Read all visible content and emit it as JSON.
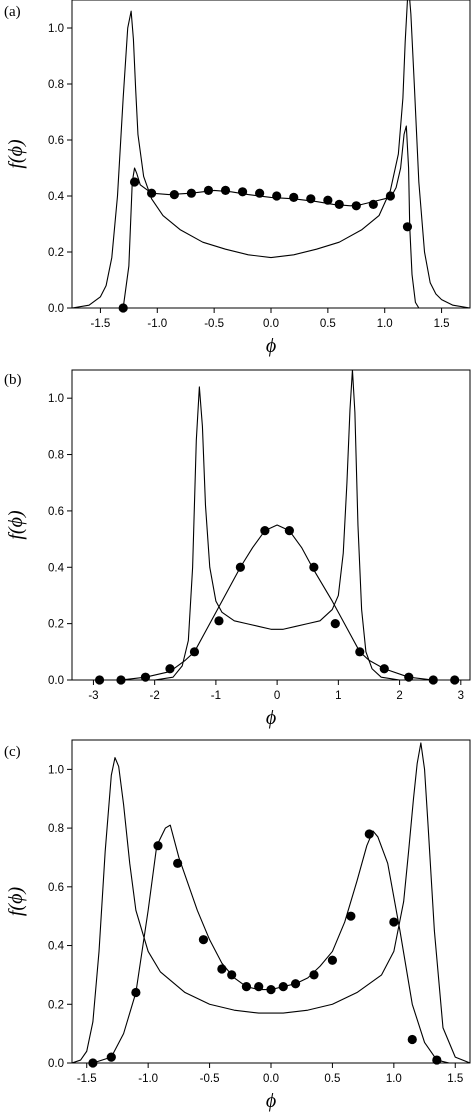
{
  "figure": {
    "panel_labels": [
      "(a)",
      "(b)",
      "(c)"
    ]
  },
  "chart_data": [
    {
      "type": "line",
      "panel": "(a)",
      "xlabel": "ϕ",
      "ylabel": "f(ϕ)",
      "xlim": [
        -1.75,
        1.75
      ],
      "ylim": [
        0,
        1.1
      ],
      "xticks": [
        -1.5,
        -1.0,
        -0.5,
        0.0,
        0.5,
        1.0,
        1.5
      ],
      "xtick_labels": [
        "-1.5",
        "-1.0",
        "-0.5",
        "0.0",
        "0.5",
        "1.0",
        "1.5"
      ],
      "yticks": [
        0.0,
        0.2,
        0.4,
        0.6,
        0.8,
        1.0
      ],
      "ytick_labels": [
        "0.0",
        "0.2",
        "0.4",
        "0.6",
        "0.8",
        "1.0"
      ],
      "grid": false,
      "series": [
        {
          "style": "line",
          "x": [
            -1.75,
            -1.6,
            -1.5,
            -1.45,
            -1.4,
            -1.35,
            -1.3,
            -1.26,
            -1.23,
            -1.21,
            -1.19,
            -1.17,
            -1.12,
            -1.05,
            -0.95,
            -0.8,
            -0.6,
            -0.4,
            -0.2,
            0.0,
            0.2,
            0.4,
            0.6,
            0.8,
            0.95,
            1.05,
            1.12,
            1.16,
            1.18,
            1.2,
            1.21,
            1.23,
            1.26,
            1.3,
            1.35,
            1.4,
            1.45,
            1.5,
            1.6,
            1.75
          ],
          "y": [
            0.0,
            0.01,
            0.04,
            0.08,
            0.18,
            0.4,
            0.75,
            1.0,
            1.06,
            0.96,
            0.78,
            0.62,
            0.47,
            0.39,
            0.33,
            0.28,
            0.235,
            0.21,
            0.19,
            0.18,
            0.19,
            0.21,
            0.235,
            0.28,
            0.33,
            0.42,
            0.55,
            0.75,
            0.95,
            1.1,
            1.15,
            1.05,
            0.8,
            0.45,
            0.2,
            0.09,
            0.05,
            0.03,
            0.01,
            0.0
          ]
        },
        {
          "style": "line-markers",
          "x": [
            -1.75,
            -1.35,
            -1.3,
            -1.25,
            -1.22,
            -1.2,
            -1.18,
            -1.15,
            -1.05,
            -0.9,
            -0.7,
            -0.5,
            -0.35,
            -0.2,
            0.0,
            0.2,
            0.4,
            0.55,
            0.7,
            0.8,
            0.9,
            1.0,
            1.06,
            1.1,
            1.14,
            1.17,
            1.19,
            1.21,
            1.22,
            1.24,
            1.27,
            1.3,
            1.75
          ],
          "y": [
            0.0,
            0.0,
            0.0,
            0.15,
            0.45,
            0.5,
            0.48,
            0.44,
            0.41,
            0.405,
            0.41,
            0.42,
            0.415,
            0.405,
            0.395,
            0.39,
            0.38,
            0.37,
            0.365,
            0.37,
            0.38,
            0.39,
            0.4,
            0.43,
            0.5,
            0.62,
            0.65,
            0.5,
            0.29,
            0.12,
            0.02,
            0.0,
            0.0
          ],
          "markers": {
            "x": [
              -1.3,
              -1.2,
              -1.05,
              -0.85,
              -0.7,
              -0.55,
              -0.4,
              -0.25,
              -0.1,
              0.05,
              0.2,
              0.35,
              0.5,
              0.6,
              0.75,
              0.9,
              1.05,
              1.2
            ],
            "y": [
              0.0,
              0.45,
              0.41,
              0.405,
              0.41,
              0.42,
              0.42,
              0.415,
              0.41,
              0.4,
              0.395,
              0.39,
              0.385,
              0.37,
              0.365,
              0.37,
              0.4,
              0.29
            ]
          }
        }
      ]
    },
    {
      "type": "line",
      "panel": "(b)",
      "xlabel": "ϕ",
      "ylabel": "f(ϕ)",
      "xlim": [
        -3.35,
        3.15
      ],
      "ylim": [
        0,
        1.1
      ],
      "xticks": [
        -3,
        -2,
        -1,
        0,
        1,
        2,
        3
      ],
      "xtick_labels": [
        "-3",
        "-2",
        "-1",
        "0",
        "1",
        "2",
        "3"
      ],
      "yticks": [
        0.0,
        0.2,
        0.4,
        0.6,
        0.8,
        1.0
      ],
      "ytick_labels": [
        "0.0",
        "0.2",
        "0.4",
        "0.6",
        "0.8",
        "1.0"
      ],
      "grid": false,
      "series": [
        {
          "style": "line",
          "x": [
            -3.35,
            -2.0,
            -1.7,
            -1.55,
            -1.45,
            -1.38,
            -1.32,
            -1.27,
            -1.22,
            -1.17,
            -1.1,
            -1.0,
            -0.9,
            -0.7,
            -0.5,
            -0.3,
            -0.1,
            0.1,
            0.3,
            0.5,
            0.7,
            0.9,
            1.0,
            1.08,
            1.14,
            1.19,
            1.23,
            1.27,
            1.32,
            1.38,
            1.45,
            1.55,
            1.7,
            2.0,
            3.15
          ],
          "y": [
            0.0,
            0.0,
            0.01,
            0.05,
            0.14,
            0.4,
            0.85,
            1.04,
            0.9,
            0.62,
            0.4,
            0.28,
            0.24,
            0.21,
            0.2,
            0.19,
            0.18,
            0.18,
            0.19,
            0.2,
            0.21,
            0.25,
            0.3,
            0.45,
            0.7,
            0.96,
            1.1,
            0.95,
            0.55,
            0.25,
            0.1,
            0.04,
            0.01,
            0.0,
            0.0
          ]
        },
        {
          "style": "line-markers",
          "x": [
            -3.35,
            -2.9,
            -2.55,
            -2.15,
            -1.75,
            -1.5,
            -1.35,
            -1.1,
            -0.9,
            -0.6,
            -0.4,
            -0.2,
            0.0,
            0.2,
            0.4,
            0.6,
            0.9,
            1.1,
            1.35,
            1.5,
            1.75,
            2.15,
            2.55,
            2.9,
            3.15
          ],
          "y": [
            0.0,
            0.0,
            0.0,
            0.01,
            0.03,
            0.07,
            0.1,
            0.2,
            0.28,
            0.4,
            0.47,
            0.53,
            0.55,
            0.53,
            0.47,
            0.39,
            0.28,
            0.2,
            0.1,
            0.07,
            0.04,
            0.01,
            0.0,
            0.0,
            0.0
          ],
          "markers": {
            "x": [
              -2.9,
              -2.55,
              -2.15,
              -1.75,
              -1.35,
              -0.95,
              -0.6,
              -0.2,
              0.2,
              0.6,
              0.95,
              1.35,
              1.75,
              2.15,
              2.55,
              2.9
            ],
            "y": [
              0.0,
              0.0,
              0.01,
              0.04,
              0.1,
              0.21,
              0.4,
              0.53,
              0.53,
              0.4,
              0.2,
              0.1,
              0.04,
              0.01,
              0.0,
              0.0
            ]
          }
        }
      ]
    },
    {
      "type": "line",
      "panel": "(c)",
      "xlabel": "ϕ",
      "ylabel": "f(ϕ)",
      "xlim": [
        -1.62,
        1.62
      ],
      "ylim": [
        0,
        1.1
      ],
      "xticks": [
        -1.5,
        -1.0,
        -0.5,
        0.0,
        0.5,
        1.0,
        1.5
      ],
      "xtick_labels": [
        "-1.5",
        "-1.0",
        "-0.5",
        "0.0",
        "0.5",
        "1.0",
        "1.5"
      ],
      "yticks": [
        0.0,
        0.2,
        0.4,
        0.6,
        0.8,
        1.0
      ],
      "ytick_labels": [
        "0.0",
        "0.2",
        "0.4",
        "0.6",
        "0.8",
        "1.0"
      ],
      "grid": false,
      "series": [
        {
          "style": "line",
          "x": [
            -1.62,
            -1.55,
            -1.5,
            -1.45,
            -1.4,
            -1.35,
            -1.3,
            -1.27,
            -1.24,
            -1.2,
            -1.15,
            -1.1,
            -1.0,
            -0.9,
            -0.7,
            -0.5,
            -0.3,
            -0.1,
            0.1,
            0.3,
            0.5,
            0.7,
            0.9,
            1.0,
            1.08,
            1.12,
            1.16,
            1.19,
            1.22,
            1.25,
            1.28,
            1.33,
            1.4,
            1.5,
            1.62
          ],
          "y": [
            0.0,
            0.01,
            0.04,
            0.14,
            0.38,
            0.72,
            0.98,
            1.04,
            1.01,
            0.88,
            0.68,
            0.52,
            0.38,
            0.31,
            0.24,
            0.2,
            0.18,
            0.17,
            0.17,
            0.18,
            0.2,
            0.24,
            0.3,
            0.38,
            0.55,
            0.72,
            0.9,
            1.02,
            1.09,
            1.0,
            0.8,
            0.45,
            0.12,
            0.02,
            0.0
          ]
        },
        {
          "style": "line-markers",
          "x": [
            -1.62,
            -1.45,
            -1.3,
            -1.2,
            -1.1,
            -1.0,
            -0.93,
            -0.86,
            -0.82,
            -0.75,
            -0.6,
            -0.5,
            -0.4,
            -0.3,
            -0.2,
            -0.1,
            0.0,
            0.1,
            0.2,
            0.3,
            0.4,
            0.5,
            0.6,
            0.7,
            0.78,
            0.83,
            0.87,
            0.95,
            1.05,
            1.15,
            1.25,
            1.35,
            1.45,
            1.62
          ],
          "y": [
            0.0,
            0.0,
            0.02,
            0.1,
            0.24,
            0.52,
            0.74,
            0.8,
            0.81,
            0.7,
            0.52,
            0.42,
            0.34,
            0.29,
            0.26,
            0.25,
            0.25,
            0.26,
            0.27,
            0.29,
            0.33,
            0.38,
            0.48,
            0.62,
            0.74,
            0.79,
            0.77,
            0.68,
            0.45,
            0.2,
            0.07,
            0.01,
            0.0,
            0.0
          ]
        }
      ],
      "markers": {
        "x": [
          -1.45,
          -1.3,
          -1.1,
          -0.92,
          -0.76,
          -0.55,
          -0.4,
          -0.32,
          -0.2,
          -0.1,
          0.0,
          0.1,
          0.2,
          0.35,
          0.5,
          0.65,
          0.8,
          1.0,
          1.15,
          1.35
        ],
        "y": [
          0.0,
          0.02,
          0.24,
          0.74,
          0.68,
          0.42,
          0.32,
          0.3,
          0.26,
          0.26,
          0.25,
          0.26,
          0.27,
          0.3,
          0.35,
          0.5,
          0.78,
          0.48,
          0.08,
          0.01
        ]
      }
    }
  ]
}
